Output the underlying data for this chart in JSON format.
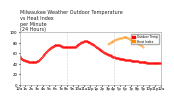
{
  "title": "Milwaukee Weather Outdoor Temperature vs Heat Index per Minute (24 Hours)",
  "legend_temp": "Outdoor Temp",
  "legend_hi": "Heat Index",
  "color_temp": "#ff0000",
  "color_hi": "#ff8800",
  "color_legend_bar_temp": "#ff0000",
  "color_legend_bar_hi": "#ff8800",
  "ylim": [
    0,
    100
  ],
  "xlim": [
    0,
    1440
  ],
  "ylabel": "°F",
  "background": "#ffffff",
  "grid_color": "#cccccc",
  "title_fontsize": 3.5,
  "tick_fontsize": 2.8,
  "marker_size": 0.6,
  "temp_data": [
    55,
    53,
    52,
    51,
    50,
    50,
    49,
    48,
    48,
    47,
    47,
    47,
    46,
    46,
    46,
    45,
    45,
    45,
    44,
    44,
    44,
    44,
    43,
    43,
    43,
    43,
    43,
    43,
    43,
    43,
    43,
    43,
    44,
    44,
    44,
    44,
    45,
    45,
    46,
    46,
    47,
    48,
    49,
    50,
    51,
    52,
    53,
    54,
    55,
    56,
    57,
    58,
    59,
    60,
    61,
    62,
    63,
    64,
    65,
    66,
    67,
    68,
    68,
    69,
    70,
    71,
    72,
    72,
    73,
    73,
    74,
    74,
    74,
    75,
    75,
    75,
    75,
    75,
    75,
    75,
    75,
    75,
    75,
    75,
    75,
    74,
    74,
    74,
    74,
    73,
    73,
    73,
    73,
    73,
    72,
    72,
    72,
    72,
    72,
    72,
    72,
    72,
    72,
    72,
    72,
    72,
    72,
    72,
    72,
    72,
    72,
    72,
    72,
    72,
    72,
    72,
    73,
    73,
    74,
    74,
    75,
    75,
    76,
    77,
    78,
    78,
    79,
    80,
    80,
    81,
    81,
    82,
    82,
    82,
    83,
    83,
    83,
    83,
    83,
    83,
    83,
    83,
    82,
    82,
    82,
    81,
    81,
    80,
    80,
    79,
    78,
    78,
    77,
    77,
    76,
    75,
    75,
    74,
    74,
    73,
    72,
    72,
    71,
    70,
    70,
    69,
    68,
    68,
    67,
    66,
    66,
    65,
    64,
    64,
    63,
    62,
    62,
    61,
    61,
    60,
    60,
    59,
    59,
    58,
    58,
    57,
    57,
    57,
    56,
    56,
    56,
    55,
    55,
    55,
    54,
    54,
    54,
    53,
    53,
    53,
    52,
    52,
    52,
    52,
    51,
    51,
    51,
    51,
    50,
    50,
    50,
    50,
    50,
    49,
    49,
    49,
    49,
    49,
    49,
    48,
    48,
    48,
    48,
    48,
    48,
    47,
    47,
    47,
    47,
    47,
    47,
    47,
    47,
    46,
    46,
    46,
    46,
    46,
    46,
    46,
    46,
    46,
    46,
    45,
    45,
    45,
    45,
    45,
    45,
    44,
    44,
    44,
    44,
    44,
    44,
    44,
    44,
    43,
    43,
    43,
    43,
    43,
    43,
    43,
    43,
    42,
    42,
    42,
    42,
    42,
    42,
    42,
    42,
    42,
    42,
    42,
    42,
    42,
    42,
    42,
    42,
    42,
    42,
    42,
    42,
    42,
    42,
    42,
    42,
    42,
    42,
    42,
    42,
    42,
    42,
    42
  ],
  "hi_data_start": 900,
  "hi_data": [
    78,
    79,
    80,
    81,
    82,
    83,
    84,
    85,
    86,
    87,
    88,
    88,
    89,
    89,
    90,
    90,
    91,
    91,
    91,
    91,
    91,
    90,
    89,
    88,
    87,
    86,
    85,
    84,
    83,
    82,
    81,
    80,
    79,
    78,
    77,
    76,
    75,
    74,
    73
  ],
  "xticks": [
    0,
    60,
    120,
    180,
    240,
    300,
    360,
    420,
    480,
    540,
    600,
    660,
    720,
    780,
    840,
    900,
    960,
    1020,
    1080,
    1140,
    1200,
    1260,
    1320,
    1380,
    1440
  ],
  "xticklabels": [
    "12a",
    "1a",
    "2a",
    "3a",
    "4a",
    "5a",
    "6a",
    "7a",
    "8a",
    "9a",
    "10a",
    "11a",
    "12p",
    "1p",
    "2p",
    "3p",
    "4p",
    "5p",
    "6p",
    "7p",
    "8p",
    "9p",
    "10p",
    "11p",
    "12a"
  ],
  "yticks": [
    0,
    20,
    40,
    60,
    80,
    100
  ],
  "yticklabels": [
    "0",
    "20",
    "40",
    "60",
    "80",
    "100"
  ],
  "vline_positions": [
    480,
    960
  ],
  "vline_color": "#aaaaaa",
  "vline_style": ":"
}
